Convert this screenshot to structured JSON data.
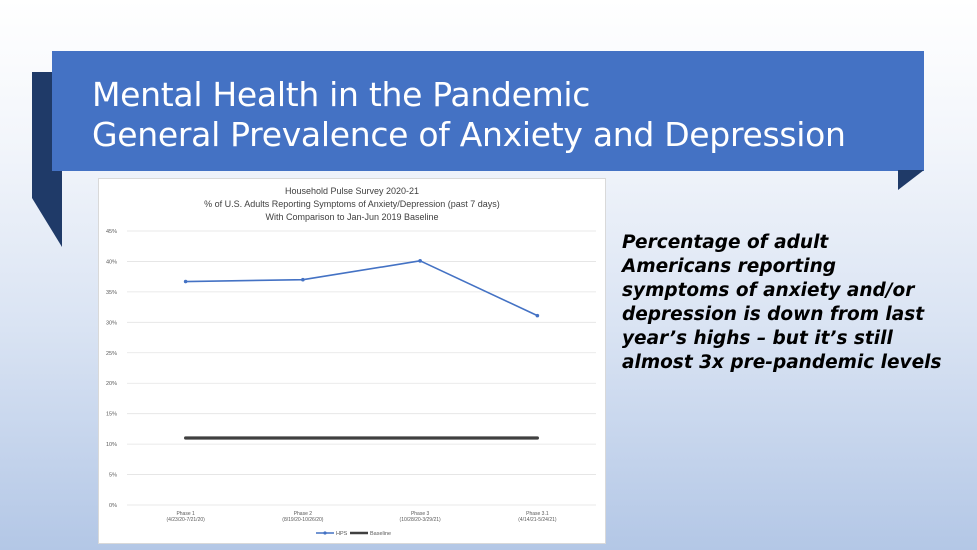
{
  "slide": {
    "title_line1": "Mental Health in the Pandemic",
    "title_line2": "General Prevalence of Anxiety and Depression",
    "caption": "Percentage of adult Americans reporting symptoms of anxiety and/or depression is down from last year’s highs – but it’s still almost 3x pre-pandemic levels",
    "colors": {
      "banner": "#4472c4",
      "ribbon": "#1f3a68"
    }
  },
  "chart_data": {
    "type": "line",
    "title": "Household Pulse Survey 2020-21",
    "subtitle1": "% of U.S. Adults Reporting Symptoms of Anxiety/Depression (past 7 days)",
    "subtitle2": "With Comparison to Jan-Jun 2019 Baseline",
    "categories": [
      {
        "name": "Phase 1",
        "dates": "(4/23/20-7/21/20)"
      },
      {
        "name": "Phase 2",
        "dates": "(8/19/20-10/26/20)"
      },
      {
        "name": "Phase 3",
        "dates": "(10/28/20-3/29/21)"
      },
      {
        "name": "Phase 3.1",
        "dates": "(4/14/21-5/24/21)"
      }
    ],
    "yticks": [
      "0%",
      "5%",
      "10%",
      "15%",
      "20%",
      "25%",
      "30%",
      "35%",
      "40%",
      "45%"
    ],
    "ylim": [
      0,
      45
    ],
    "grid": true,
    "legend_position": "bottom",
    "series": [
      {
        "name": "HPS",
        "values": [
          36.7,
          37.0,
          40.1,
          31.1
        ],
        "color": "#4472c4",
        "markers": true
      },
      {
        "name": "Baseline",
        "values": [
          11.0,
          11.0,
          11.0,
          11.0
        ],
        "color": "#404040",
        "markers": false
      }
    ]
  }
}
